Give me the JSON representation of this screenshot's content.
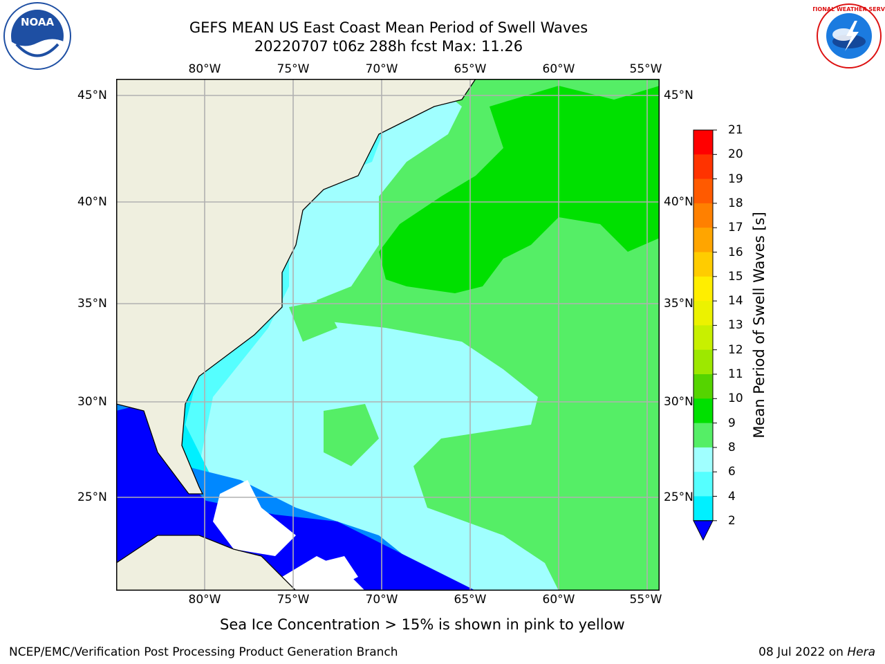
{
  "title": {
    "line1": "GEFS MEAN US East Coast Mean Period of Swell Waves",
    "line2": "20220707 t06z 288h fcst   Max: 11.26"
  },
  "logos": {
    "left_icon": "noaa-logo",
    "left_text": "NOAA",
    "right_icon": "nws-logo",
    "right_text": "NATIONAL WEATHER SERVICE"
  },
  "map": {
    "longitude_labels": [
      "80°W",
      "75°W",
      "70°W",
      "65°W",
      "60°W",
      "55°W"
    ],
    "latitude_labels": [
      "45°N",
      "40°N",
      "35°N",
      "30°N",
      "25°N"
    ],
    "land_color": "#efefdf",
    "no_data_color": "#ffffff",
    "gridline_color": "#b0b0b0"
  },
  "colorbar": {
    "label": "Mean Period of Swell Waves [s]",
    "ticks": [
      "21",
      "20",
      "19",
      "18",
      "17",
      "16",
      "15",
      "14",
      "13",
      "12",
      "11",
      "10",
      "9",
      "8",
      "6",
      "4",
      "2"
    ],
    "colors": [
      "#ff0000",
      "#ff3300",
      "#ff5a00",
      "#ff8000",
      "#ffa500",
      "#ffcc00",
      "#ffee00",
      "#ecf200",
      "#c8f000",
      "#9de800",
      "#55d400",
      "#00e000",
      "#55ee66",
      "#a0ffff",
      "#55ffff",
      "#00f0ff",
      "#0088ff",
      "#0000ff"
    ]
  },
  "note": "Sea Ice Concentration > 15% is shown in pink to yellow",
  "footer": {
    "left": "NCEP/EMC/Verification Post Processing Product Generation Branch",
    "date": "08 Jul 2022 on ",
    "host": "Hera"
  }
}
